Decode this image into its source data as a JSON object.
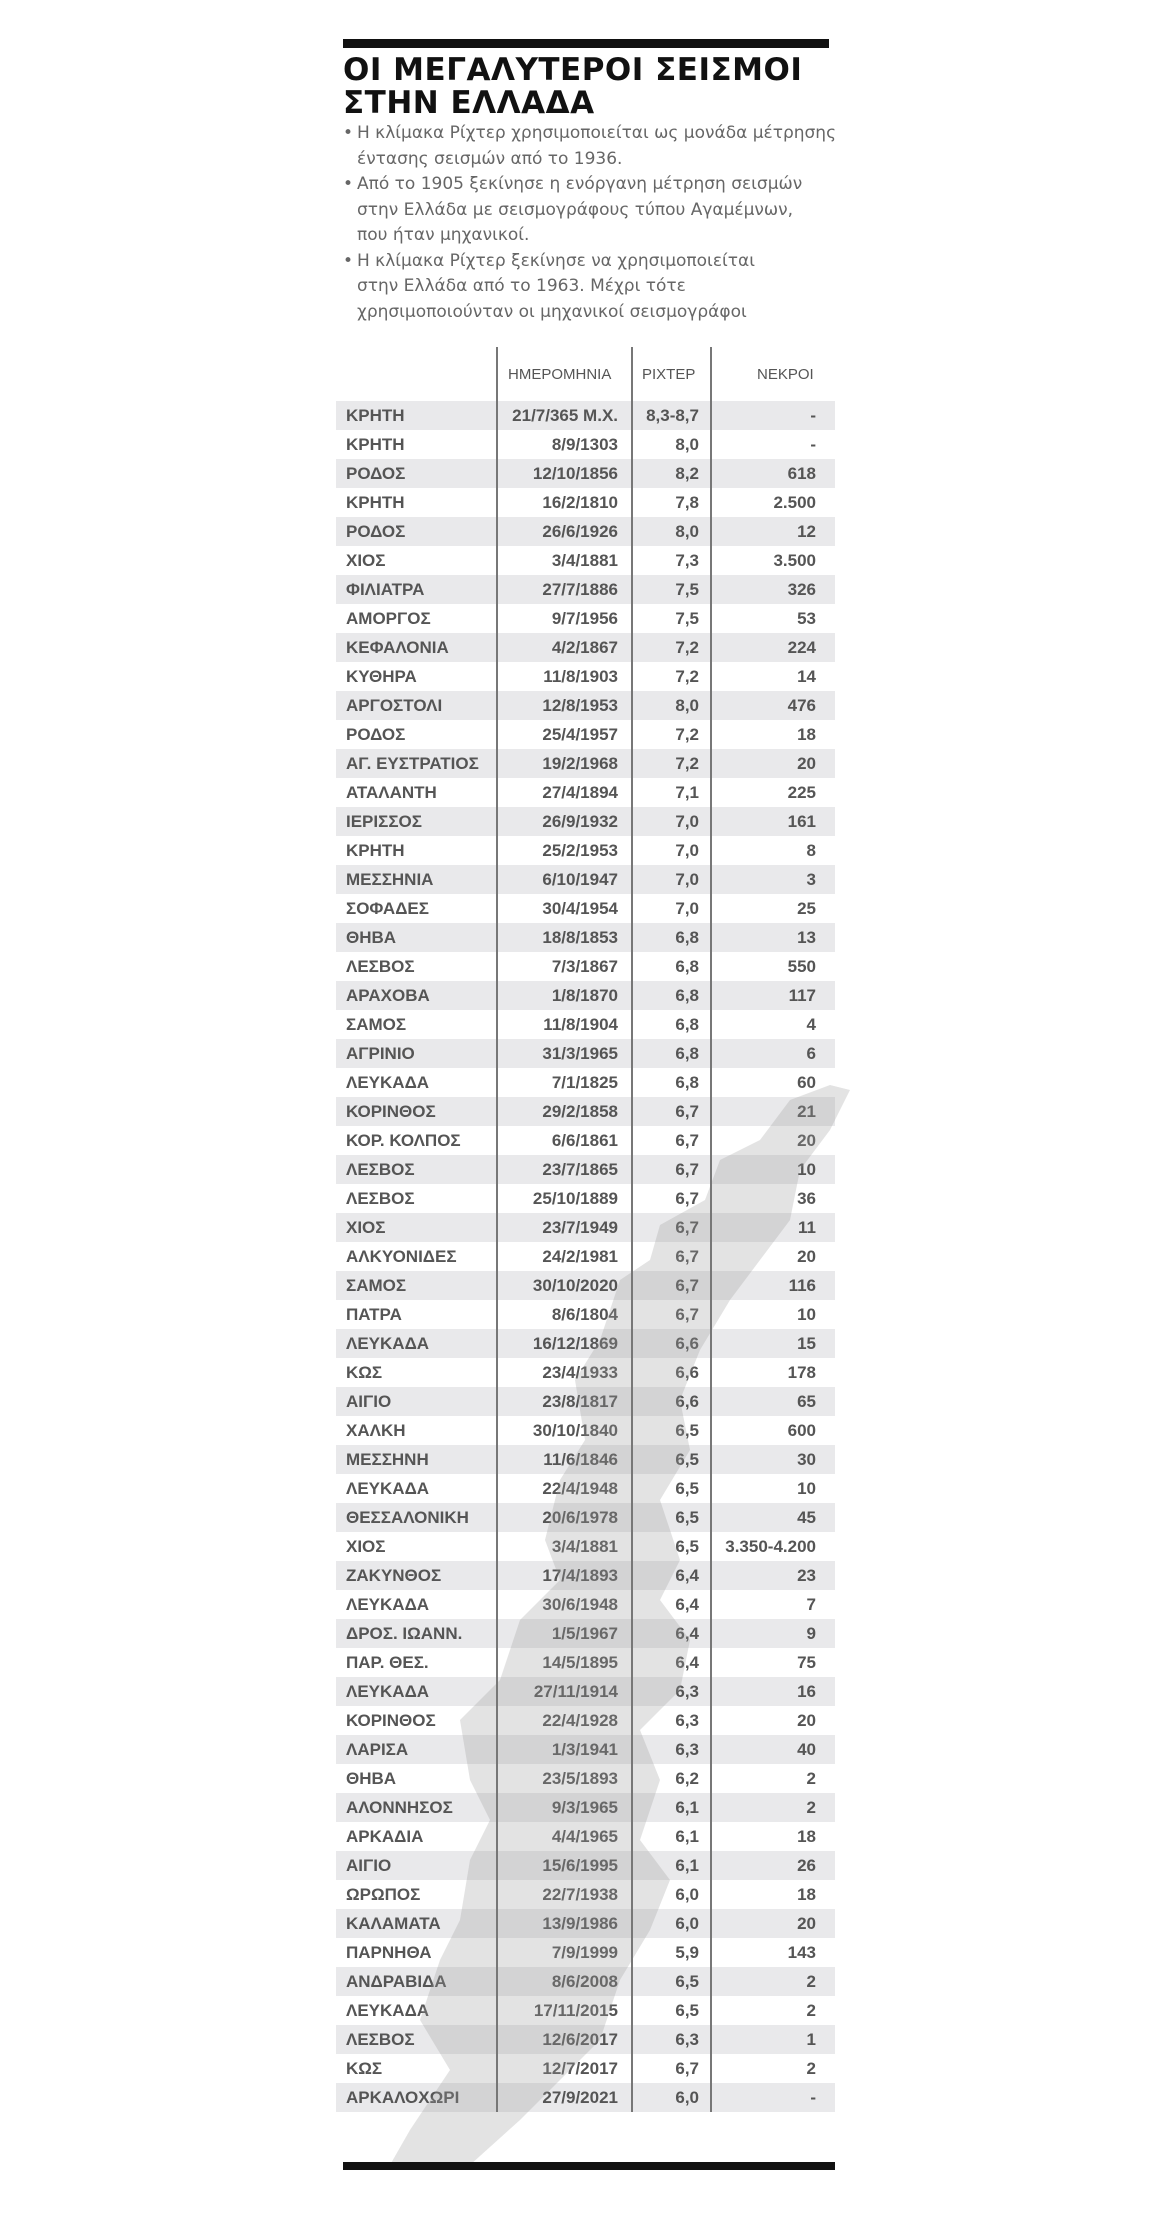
{
  "title": "ΟΙ ΜΕΓΑΛΥΤΕΡΟΙ ΣΕΙΣΜΟΙ ΣΤΗΝ ΕΛΛΑΔΑ",
  "notes": [
    "Η κλίμακα Ρίχτερ χρησιμοποιείται ως μονάδα μέτρησης\nέντασης σεισμών από το 1936.",
    "Από το 1905 ξεκίνησε η ενόργανη μέτρηση σεισμών\nστην Ελλάδα με σεισμογράφους τύπου Αγαμέμνων,\nπου ήταν μηχανικοί.",
    "Η κλίμακα Ρίχτερ ξεκίνησε να χρησιμοποιείται\nστην Ελλάδα από το 1963. Μέχρι τότε\nχρησιμοποιούνταν οι μηχανικοί σεισμογράφοι"
  ],
  "table": {
    "headers": {
      "date": "ΗΜΕΡΟΜΗΝΙΑ",
      "richter": "ΡΙΧΤΕΡ",
      "deaths": "ΝΕΚΡΟΙ"
    },
    "rows": [
      [
        "ΚΡΗΤΗ",
        "21/7/365 Μ.Χ.",
        "8,3-8,7",
        "-"
      ],
      [
        "ΚΡΗΤΗ",
        "8/9/1303",
        "8,0",
        "-"
      ],
      [
        "ΡΟΔΟΣ",
        "12/10/1856",
        "8,2",
        "618"
      ],
      [
        "ΚΡΗΤΗ",
        "16/2/1810",
        "7,8",
        "2.500"
      ],
      [
        "ΡΟΔΟΣ",
        "26/6/1926",
        "8,0",
        "12"
      ],
      [
        "ΧΙΟΣ",
        "3/4/1881",
        "7,3",
        "3.500"
      ],
      [
        "ΦΙΛΙΑΤΡΑ",
        "27/7/1886",
        "7,5",
        "326"
      ],
      [
        "ΑΜΟΡΓΟΣ",
        "9/7/1956",
        "7,5",
        "53"
      ],
      [
        "ΚΕΦΑΛΟΝΙΑ",
        "4/2/1867",
        "7,2",
        "224"
      ],
      [
        "ΚΥΘΗΡΑ",
        "11/8/1903",
        "7,2",
        "14"
      ],
      [
        "ΑΡΓΟΣΤΟΛΙ",
        "12/8/1953",
        "8,0",
        "476"
      ],
      [
        "ΡΟΔΟΣ",
        "25/4/1957",
        "7,2",
        "18"
      ],
      [
        "ΑΓ. ΕΥΣΤΡΑΤΙΟΣ",
        "19/2/1968",
        "7,2",
        "20"
      ],
      [
        "ΑΤΑΛΑΝΤΗ",
        "27/4/1894",
        "7,1",
        "225"
      ],
      [
        "ΙΕΡΙΣΣΟΣ",
        "26/9/1932",
        "7,0",
        "161"
      ],
      [
        "ΚΡΗΤΗ",
        "25/2/1953",
        "7,0",
        "8"
      ],
      [
        "ΜΕΣΣΗΝΙΑ",
        "6/10/1947",
        "7,0",
        "3"
      ],
      [
        "ΣΟΦΑΔΕΣ",
        "30/4/1954",
        "7,0",
        "25"
      ],
      [
        "ΘΗΒΑ",
        "18/8/1853",
        "6,8",
        "13"
      ],
      [
        "ΛΕΣΒΟΣ",
        "7/3/1867",
        "6,8",
        "550"
      ],
      [
        "ΑΡΑΧΟΒΑ",
        "1/8/1870",
        "6,8",
        "117"
      ],
      [
        "ΣΑΜΟΣ",
        "11/8/1904",
        "6,8",
        "4"
      ],
      [
        "ΑΓΡΙΝΙΟ",
        "31/3/1965",
        "6,8",
        "6"
      ],
      [
        "ΛΕΥΚΑΔΑ",
        "7/1/1825",
        "6,8",
        "60"
      ],
      [
        "ΚΟΡΙΝΘΟΣ",
        "29/2/1858",
        "6,7",
        "21"
      ],
      [
        "ΚΟΡ. ΚΟΛΠΟΣ",
        "6/6/1861",
        "6,7",
        "20"
      ],
      [
        "ΛΕΣΒΟΣ",
        "23/7/1865",
        "6,7",
        "10"
      ],
      [
        "ΛΕΣΒΟΣ",
        "25/10/1889",
        "6,7",
        "36"
      ],
      [
        "ΧΙΟΣ",
        "23/7/1949",
        "6,7",
        "11"
      ],
      [
        "ΑΛΚΥΟΝΙΔΕΣ",
        "24/2/1981",
        "6,7",
        "20"
      ],
      [
        "ΣΑΜΟΣ",
        "30/10/2020",
        "6,7",
        "116"
      ],
      [
        "ΠΑΤΡΑ",
        "8/6/1804",
        "6,7",
        "10"
      ],
      [
        "ΛΕΥΚΑΔΑ",
        "16/12/1869",
        "6,6",
        "15"
      ],
      [
        "ΚΩΣ",
        "23/4/1933",
        "6,6",
        "178"
      ],
      [
        "ΑΙΓΙΟ",
        "23/8/1817",
        "6,6",
        "65"
      ],
      [
        "ΧΑΛΚΗ",
        "30/10/1840",
        "6,5",
        "600"
      ],
      [
        "ΜΕΣΣΗΝΗ",
        "11/6/1846",
        "6,5",
        "30"
      ],
      [
        "ΛΕΥΚΑΔΑ",
        "22/4/1948",
        "6,5",
        "10"
      ],
      [
        "ΘΕΣΣΑΛΟΝΙΚΗ",
        "20/6/1978",
        "6,5",
        "45"
      ],
      [
        "ΧΙΟΣ",
        "3/4/1881",
        "6,5",
        "3.350-4.200"
      ],
      [
        "ΖΑΚΥΝΘΟΣ",
        "17/4/1893",
        "6,4",
        "23"
      ],
      [
        "ΛΕΥΚΑΔΑ",
        "30/6/1948",
        "6,4",
        "7"
      ],
      [
        "ΔΡΟΣ. ΙΩΑΝΝ.",
        "1/5/1967",
        "6,4",
        "9"
      ],
      [
        "ΠΑΡ. ΘΕΣ.",
        "14/5/1895",
        "6,4",
        "75"
      ],
      [
        "ΛΕΥΚΑΔΑ",
        "27/11/1914",
        "6,3",
        "16"
      ],
      [
        "ΚΟΡΙΝΘΟΣ",
        "22/4/1928",
        "6,3",
        "20"
      ],
      [
        "ΛΑΡΙΣΑ",
        "1/3/1941",
        "6,3",
        "40"
      ],
      [
        "ΘΗΒΑ",
        "23/5/1893",
        "6,2",
        "2"
      ],
      [
        "ΑΛΟΝΝΗΣΟΣ",
        "9/3/1965",
        "6,1",
        "2"
      ],
      [
        "ΑΡΚΑΔΙΑ",
        "4/4/1965",
        "6,1",
        "18"
      ],
      [
        "ΑΙΓΙΟ",
        "15/6/1995",
        "6,1",
        "26"
      ],
      [
        "ΩΡΩΠΟΣ",
        "22/7/1938",
        "6,0",
        "18"
      ],
      [
        "ΚΑΛΑΜΑΤΑ",
        "13/9/1986",
        "6,0",
        "20"
      ],
      [
        "ΠΑΡΝΗΘΑ",
        "7/9/1999",
        "5,9",
        "143"
      ],
      [
        "ΑΝΔΡΑΒΙΔΑ",
        "8/6/2008",
        "6,5",
        "2"
      ],
      [
        "ΛΕΥΚΑΔΑ",
        "17/11/2015",
        "6,5",
        "2"
      ],
      [
        "ΛΕΣΒΟΣ",
        "12/6/2017",
        "6,3",
        "1"
      ],
      [
        "ΚΩΣ",
        "12/7/2017",
        "6,7",
        "2"
      ],
      [
        "ΑΡΚΑΛΟΧΩΡΙ",
        "27/9/2021",
        "6,0",
        "-"
      ]
    ]
  },
  "colors": {
    "rule": "#111111",
    "stripe": "#e4e4e6",
    "text": "#555555",
    "notes": "#666666"
  },
  "decoration": "crack-graphic"
}
